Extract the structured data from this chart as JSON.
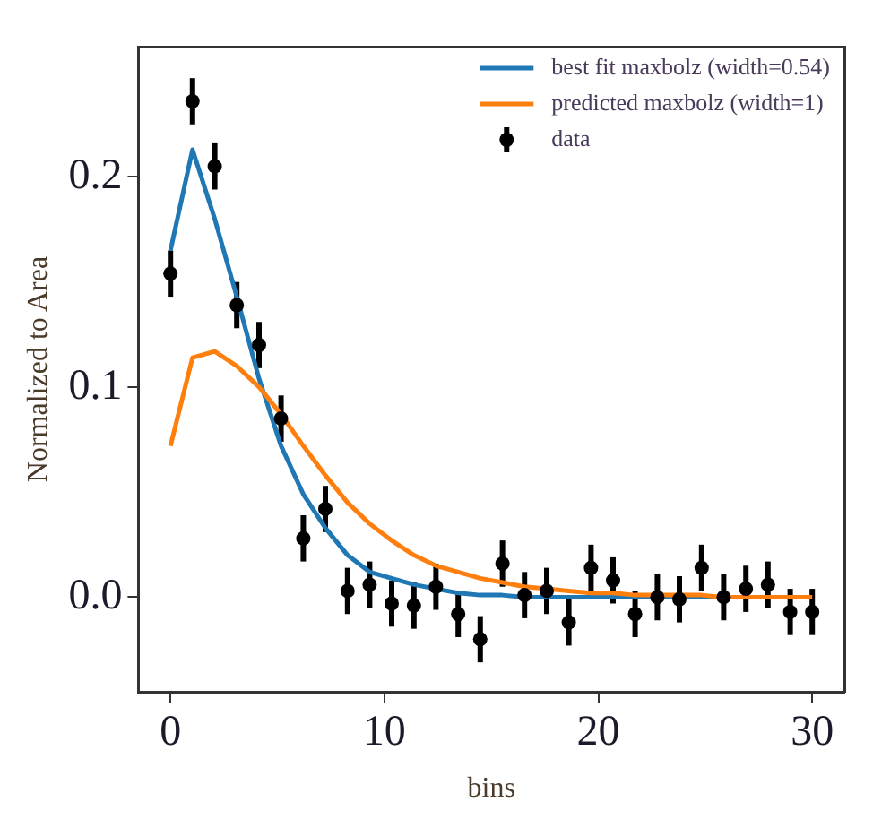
{
  "chart_data": {
    "type": "scatter",
    "xlabel": "bins",
    "ylabel": "Normalized to Area",
    "x": [
      0,
      1.03,
      2.07,
      3.1,
      4.14,
      5.17,
      6.21,
      7.24,
      8.28,
      9.31,
      10.34,
      11.38,
      12.41,
      13.45,
      14.48,
      15.52,
      16.55,
      17.59,
      18.62,
      19.66,
      20.69,
      21.72,
      22.76,
      23.79,
      24.83,
      25.86,
      26.9,
      27.93,
      28.97,
      30
    ],
    "series": [
      {
        "name": "best fit maxbolz (width=0.54)",
        "type": "line",
        "color": "#1f77b4",
        "marker": "none",
        "line_style": "solid",
        "values": [
          0.165,
          0.213,
          0.18,
          0.143,
          0.104,
          0.072,
          0.049,
          0.033,
          0.02,
          0.012,
          0.009,
          0.006,
          0.004,
          0.002,
          0.001,
          0.001,
          0,
          0,
          0,
          0,
          0,
          0,
          0,
          0,
          0,
          0,
          0,
          null,
          null,
          null
        ]
      },
      {
        "name": "predicted maxbolz (width=1)",
        "type": "line",
        "color": "#ff7f0e",
        "marker": "none",
        "line_style": "solid",
        "values": [
          0.072,
          0.114,
          0.117,
          0.11,
          0.1,
          0.087,
          0.072,
          0.058,
          0.045,
          0.035,
          0.027,
          0.02,
          0.015,
          0.012,
          0.009,
          0.007,
          0.005,
          0.004,
          0.003,
          0.002,
          0.002,
          0.001,
          0.001,
          0.001,
          0.001,
          0,
          0,
          0,
          0,
          0
        ]
      },
      {
        "name": "data",
        "type": "scatter",
        "color": "#000000",
        "marker": "circle",
        "values": [
          0.154,
          0.236,
          0.205,
          0.139,
          0.12,
          0.085,
          0.028,
          0.042,
          0.003,
          0.006,
          -0.003,
          -0.004,
          0.005,
          -0.008,
          -0.02,
          0.016,
          0.001,
          0.003,
          -0.012,
          0.014,
          0.008,
          -0.008,
          0,
          -0.001,
          0.014,
          0,
          0.004,
          0.006,
          -0.007,
          -0.007
        ],
        "errors": [
          0.011,
          0.011,
          0.011,
          0.011,
          0.011,
          0.011,
          0.011,
          0.011,
          0.011,
          0.011,
          0.011,
          0.011,
          0.011,
          0.011,
          0.011,
          0.011,
          0.011,
          0.011,
          0.011,
          0.011,
          0.011,
          0.011,
          0.011,
          0.011,
          0.011,
          0.011,
          0.011,
          0.011,
          0.011,
          0.011
        ]
      }
    ],
    "xlim": [
      -1.5,
      31.5
    ],
    "xticks": [
      0,
      10,
      20,
      30
    ],
    "ylim": [
      -0.045,
      0.262
    ],
    "yticks": [
      {
        "value": 0,
        "label": "0.0"
      },
      {
        "value": 0.1,
        "label": "0.1"
      },
      {
        "value": 0.2,
        "label": "0.2"
      }
    ],
    "grid": false,
    "legend": "top right"
  }
}
